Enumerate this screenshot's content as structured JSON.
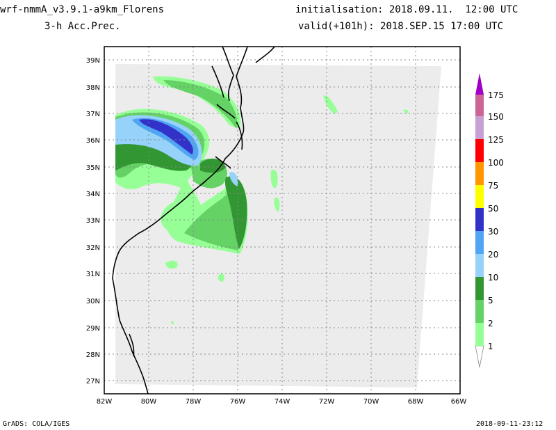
{
  "header": {
    "model_title": "wrf-nmmA_v3.9.1-a9km_Florens",
    "variable": "3-h Acc.Prec.",
    "init": "initialisation: 2018.09.11.  12:00 UTC",
    "valid": "valid(+101h): 2018.SEP.15 17:00 UTC"
  },
  "map": {
    "lat_labels": [
      "39N",
      "38N",
      "37N",
      "36N",
      "35N",
      "34N",
      "33N",
      "32N",
      "31N",
      "30N",
      "29N",
      "28N",
      "27N"
    ],
    "lon_labels": [
      "82W",
      "80W",
      "78W",
      "76W",
      "74W",
      "72W",
      "70W",
      "68W",
      "66W"
    ]
  },
  "colorbar": {
    "levels": [
      "1",
      "2",
      "5",
      "10",
      "20",
      "30",
      "50",
      "75",
      "100",
      "125",
      "150",
      "175"
    ],
    "colors": [
      "#96ff96",
      "#64d264",
      "#329632",
      "#96d2fa",
      "#50a5f5",
      "#3232c8",
      "#ffff00",
      "#ff9600",
      "#ff0000",
      "#c8a0d2",
      "#cd6496",
      "#a000c8"
    ]
  },
  "footer": {
    "left": "GrADS: COLA/IGES",
    "right": "2018-09-11-23:12"
  }
}
